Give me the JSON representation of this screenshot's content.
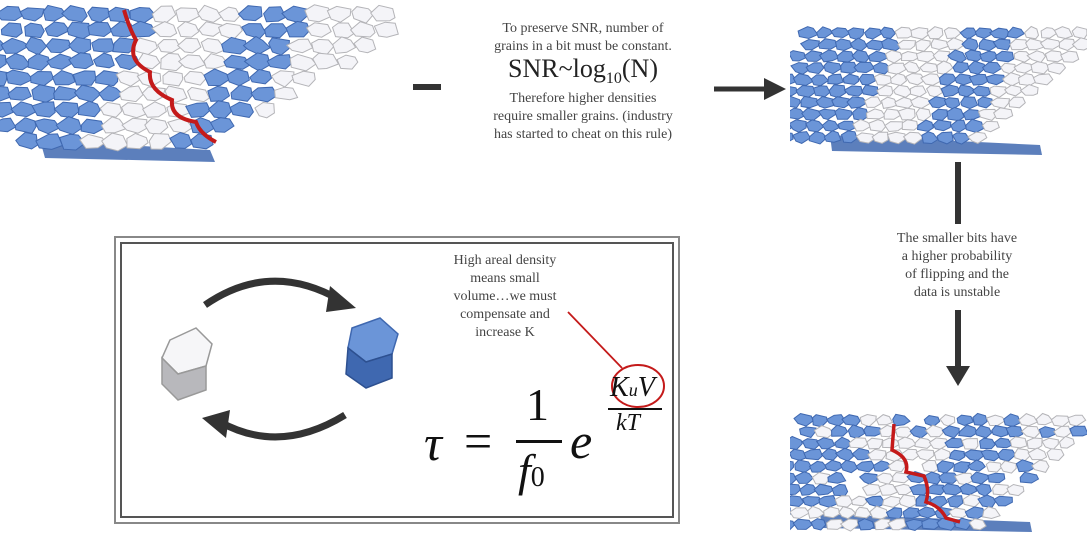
{
  "top_note": {
    "line1": "To preserve SNR, number of",
    "line2": "grains in a bit must be constant.",
    "eq_prefix": "SNR~log",
    "eq_sub": "10",
    "eq_suffix": "(N)",
    "line3": "Therefore higher densities",
    "line4": "require smaller grains. (industry",
    "line5": "has started to cheat on this rule)"
  },
  "right_note": {
    "line1": "The smaller bits have",
    "line2": "a higher probability",
    "line3": "of flipping and the",
    "line4": "data is unstable"
  },
  "box_note": {
    "line1": "High areal density",
    "line2": "means small",
    "line3": "volume…we must",
    "line4": "compensate and",
    "line5": "increase K"
  },
  "formula": {
    "lhs": "τ",
    "equals": "=",
    "numerator": "1",
    "denominator_base": "f",
    "denominator_sub": "0",
    "exp_base": "e",
    "exp_num_K": "K",
    "exp_num_sub": "u",
    "exp_num_V": "V",
    "exp_den": "kT"
  },
  "colors": {
    "blue": "#6b95d8",
    "blue_dark": "#3f68b0",
    "white_grain": "#f4f4f8",
    "grey": "#b4b4b8",
    "red": "#c41a1a",
    "arrow": "#333333"
  }
}
